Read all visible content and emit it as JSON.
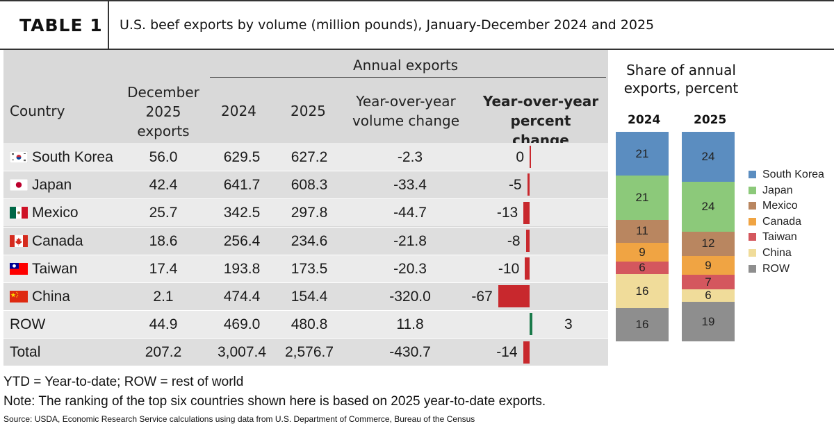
{
  "header": {
    "label": "TABLE 1",
    "title": "U.S. beef exports by volume (million pounds), January-December 2024 and 2025"
  },
  "table": {
    "columns": {
      "country": "Country",
      "december": "December 2025 exports",
      "group": "Annual exports",
      "y2024": "2024",
      "y2025": "2025",
      "vol_change": "Year-over-year volume change",
      "pct_change": "Year-over-year percent change"
    },
    "rows": [
      {
        "country": "South Korea",
        "flag": "south-korea-flag-icon",
        "december": "56.0",
        "y2024": "629.5",
        "y2025": "627.2",
        "vol_change": "-2.3",
        "pct_change": "0",
        "pct_value": 0
      },
      {
        "country": "Japan",
        "flag": "japan-flag-icon",
        "december": "42.4",
        "y2024": "641.7",
        "y2025": "608.3",
        "vol_change": "-33.4",
        "pct_change": "-5",
        "pct_value": -5
      },
      {
        "country": "Mexico",
        "flag": "mexico-flag-icon",
        "december": "25.7",
        "y2024": "342.5",
        "y2025": "297.8",
        "vol_change": "-44.7",
        "pct_change": "-13",
        "pct_value": -13
      },
      {
        "country": "Canada",
        "flag": "canada-flag-icon",
        "december": "18.6",
        "y2024": "256.4",
        "y2025": "234.6",
        "vol_change": "-21.8",
        "pct_change": "-8",
        "pct_value": -8
      },
      {
        "country": "Taiwan",
        "flag": "taiwan-flag-icon",
        "december": "17.4",
        "y2024": "193.8",
        "y2025": "173.5",
        "vol_change": "-20.3",
        "pct_change": "-10",
        "pct_value": -10
      },
      {
        "country": "China",
        "flag": "china-flag-icon",
        "december": "2.1",
        "y2024": "474.4",
        "y2025": "154.4",
        "vol_change": "-320.0",
        "pct_change": "-67",
        "pct_value": -67
      },
      {
        "country": "ROW",
        "flag": "",
        "december": "44.9",
        "y2024": "469.0",
        "y2025": "480.8",
        "vol_change": "11.8",
        "pct_change": "3",
        "pct_value": 3
      },
      {
        "country": "Total",
        "flag": "",
        "december": "207.2",
        "y2024": "3,007.4",
        "y2025": "2,576.7",
        "vol_change": "-430.7",
        "pct_change": "-14",
        "pct_value": -14
      }
    ],
    "colors": {
      "negative": "#c8282d",
      "positive": "#1a7a4a"
    }
  },
  "chart_data": {
    "type": "bar",
    "title": "Share of annual exports, percent",
    "categories": [
      "2024",
      "2025"
    ],
    "series": [
      {
        "name": "South Korea",
        "values": [
          21,
          24
        ],
        "color": "#5b8dc0"
      },
      {
        "name": "Japan",
        "values": [
          21,
          24
        ],
        "color": "#8cc97a"
      },
      {
        "name": "Mexico",
        "values": [
          11,
          12
        ],
        "color": "#b98660"
      },
      {
        "name": "Canada",
        "values": [
          9,
          9
        ],
        "color": "#f0a443"
      },
      {
        "name": "Taiwan",
        "values": [
          6,
          7
        ],
        "color": "#d4575e"
      },
      {
        "name": "China",
        "values": [
          16,
          6
        ],
        "color": "#f0dc9a"
      },
      {
        "name": "ROW",
        "values": [
          16,
          19
        ],
        "color": "#8e8e8e"
      }
    ],
    "stacked": true,
    "legend": "right"
  },
  "notes": {
    "line1": "YTD = Year-to-date; ROW = rest of world",
    "line2": "Note: The ranking of the top six countries shown here is based on 2025 year-to-date exports.",
    "source": "Source: USDA, Economic Research Service calculations using data from U.S. Department of Commerce, Bureau of the Census"
  }
}
